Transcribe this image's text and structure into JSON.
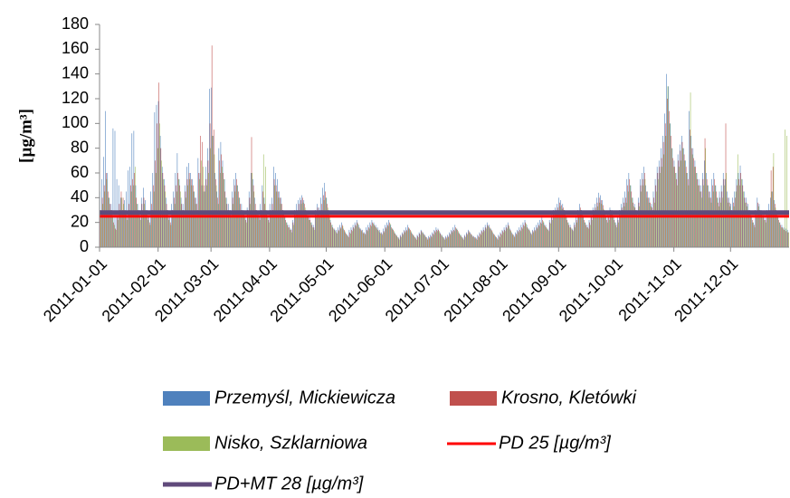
{
  "chart_data": {
    "type": "bar",
    "ylabel": "[µg/m³]",
    "ylim": [
      0,
      180
    ],
    "yticks": [
      0,
      20,
      40,
      60,
      80,
      100,
      120,
      140,
      160,
      180
    ],
    "xlim": [
      0,
      365
    ],
    "xticks": [
      {
        "value": 0,
        "label": "2011-01-01"
      },
      {
        "value": 31,
        "label": "2011-02-01"
      },
      {
        "value": 59,
        "label": "2011-03-01"
      },
      {
        "value": 90,
        "label": "2011-04-01"
      },
      {
        "value": 120,
        "label": "2011-05-01"
      },
      {
        "value": 151,
        "label": "2011-06-01"
      },
      {
        "value": 181,
        "label": "2011-07-01"
      },
      {
        "value": 212,
        "label": "2011-08-01"
      },
      {
        "value": 243,
        "label": "2011-09-01"
      },
      {
        "value": 273,
        "label": "2011-10-01"
      },
      {
        "value": 304,
        "label": "2011-11-01"
      },
      {
        "value": 334,
        "label": "2011-12-01"
      }
    ],
    "series": [
      {
        "name": "Przemyśl, Mickiewicza",
        "color": "#4f81bd",
        "values": [
          45,
          55,
          73,
          110,
          60,
          40,
          35,
          96,
          94,
          55,
          50,
          40,
          30,
          38,
          45,
          62,
          65,
          92,
          94,
          50,
          35,
          30,
          40,
          48,
          38,
          30,
          25,
          45,
          60,
          109,
          115,
          118,
          90,
          65,
          55,
          40,
          30,
          25,
          35,
          45,
          60,
          76,
          55,
          40,
          35,
          50,
          65,
          68,
          60,
          55,
          45,
          40,
          72,
          60,
          50,
          45,
          65,
          80,
          128,
          129,
          90,
          60,
          45,
          80,
          85,
          70,
          55,
          40,
          35,
          30,
          45,
          55,
          60,
          50,
          40,
          35,
          30,
          25,
          32,
          45,
          60,
          55,
          40,
          30,
          28,
          35,
          50,
          40,
          30,
          25,
          35,
          40,
          65,
          60,
          55,
          45,
          40,
          30,
          25,
          20,
          18,
          15,
          22,
          30,
          35,
          38,
          40,
          42,
          38,
          30,
          28,
          25,
          20,
          18,
          30,
          35,
          32,
          40,
          48,
          52,
          40,
          30,
          22,
          18,
          15,
          14,
          16,
          18,
          20,
          15,
          12,
          10,
          14,
          16,
          18,
          20,
          22,
          18,
          15,
          14,
          12,
          16,
          18,
          20,
          22,
          20,
          18,
          16,
          14,
          12,
          15,
          18,
          20,
          22,
          18,
          15,
          12,
          10,
          8,
          10,
          12,
          14,
          16,
          18,
          15,
          12,
          10,
          8,
          10,
          12,
          14,
          12,
          10,
          8,
          9,
          10,
          12,
          14,
          16,
          15,
          12,
          10,
          8,
          9,
          10,
          12,
          14,
          16,
          18,
          15,
          12,
          10,
          8,
          10,
          12,
          14,
          12,
          10,
          9,
          8,
          10,
          12,
          14,
          16,
          18,
          20,
          18,
          15,
          12,
          10,
          8,
          10,
          12,
          14,
          16,
          18,
          20,
          15,
          12,
          10,
          12,
          14,
          16,
          18,
          20,
          22,
          18,
          15,
          12,
          14,
          16,
          18,
          20,
          22,
          24,
          20,
          18,
          15,
          22,
          28,
          30,
          32,
          35,
          40,
          38,
          35,
          30,
          25,
          20,
          18,
          15,
          20,
          25,
          30,
          35,
          30,
          25,
          20,
          18,
          22,
          28,
          32,
          35,
          40,
          44,
          42,
          38,
          30,
          25,
          28,
          32,
          30,
          25,
          20,
          25,
          30,
          35,
          40,
          45,
          55,
          60,
          50,
          40,
          35,
          30,
          40,
          55,
          60,
          65,
          50,
          45,
          40,
          35,
          45,
          55,
          65,
          70,
          80,
          90,
          108,
          140,
          130,
          100,
          80,
          70,
          60,
          75,
          83,
          90,
          80,
          70,
          60,
          110,
          90,
          80,
          70,
          60,
          55,
          50,
          60,
          70,
          60,
          50,
          45,
          55,
          60,
          50,
          40,
          45,
          50,
          60,
          55,
          45,
          40,
          35,
          40,
          45,
          55,
          60,
          66,
          55,
          45,
          40,
          35,
          30,
          25,
          20,
          30,
          40,
          35,
          30,
          28,
          25,
          30,
          35,
          40,
          45,
          38,
          30,
          25,
          20,
          18,
          16,
          15,
          14
        ]
      },
      {
        "name": "Krosno, Kletówki",
        "color": "#c0504d",
        "values": [
          30,
          40,
          50,
          60,
          45,
          35,
          30,
          20,
          15,
          25,
          35,
          45,
          40,
          30,
          25,
          35,
          50,
          55,
          60,
          40,
          30,
          25,
          35,
          40,
          30,
          25,
          20,
          35,
          50,
          70,
          100,
          133,
          80,
          60,
          50,
          35,
          25,
          20,
          30,
          40,
          50,
          60,
          50,
          35,
          30,
          45,
          55,
          60,
          55,
          50,
          40,
          35,
          60,
          90,
          85,
          50,
          55,
          70,
          100,
          163,
          95,
          55,
          40,
          70,
          75,
          60,
          45,
          35,
          30,
          28,
          40,
          50,
          55,
          45,
          35,
          30,
          28,
          22,
          30,
          40,
          89,
          50,
          35,
          28,
          25,
          30,
          45,
          35,
          28,
          22,
          30,
          35,
          55,
          50,
          45,
          40,
          35,
          28,
          22,
          18,
          16,
          14,
          20,
          28,
          30,
          35,
          38,
          40,
          35,
          28,
          25,
          22,
          18,
          16,
          28,
          32,
          30,
          35,
          42,
          45,
          35,
          28,
          20,
          16,
          14,
          12,
          14,
          16,
          18,
          14,
          11,
          9,
          12,
          14,
          16,
          18,
          20,
          16,
          14,
          12,
          11,
          14,
          16,
          18,
          20,
          18,
          16,
          14,
          12,
          11,
          13,
          16,
          18,
          20,
          16,
          14,
          11,
          9,
          7,
          9,
          11,
          13,
          14,
          16,
          14,
          11,
          9,
          7,
          9,
          11,
          13,
          11,
          9,
          7,
          8,
          9,
          11,
          13,
          14,
          14,
          11,
          9,
          7,
          8,
          9,
          11,
          13,
          14,
          16,
          14,
          11,
          9,
          7,
          9,
          11,
          13,
          11,
          9,
          8,
          7,
          9,
          11,
          13,
          14,
          16,
          18,
          16,
          14,
          11,
          9,
          7,
          9,
          11,
          13,
          14,
          16,
          18,
          14,
          11,
          9,
          11,
          13,
          14,
          16,
          18,
          20,
          16,
          14,
          11,
          13,
          14,
          16,
          18,
          20,
          22,
          18,
          16,
          14,
          20,
          25,
          28,
          30,
          32,
          36,
          34,
          32,
          28,
          22,
          18,
          16,
          14,
          18,
          22,
          28,
          32,
          28,
          22,
          18,
          16,
          20,
          25,
          30,
          32,
          36,
          40,
          38,
          34,
          28,
          22,
          25,
          30,
          28,
          22,
          18,
          22,
          28,
          32,
          36,
          40,
          50,
          55,
          45,
          36,
          32,
          28,
          36,
          50,
          55,
          60,
          45,
          40,
          36,
          32,
          40,
          50,
          60,
          65,
          72,
          85,
          100,
          120,
          110,
          90,
          72,
          65,
          55,
          70,
          78,
          85,
          75,
          65,
          55,
          95,
          80,
          72,
          65,
          55,
          50,
          45,
          55,
          88,
          55,
          45,
          40,
          50,
          55,
          45,
          36,
          40,
          45,
          55,
          100,
          40,
          36,
          30,
          36,
          40,
          50,
          55,
          60,
          50,
          40,
          36,
          30,
          28,
          22,
          18,
          28,
          36,
          30,
          28,
          25,
          22,
          28,
          30,
          62,
          65,
          35,
          28,
          22,
          18,
          16,
          14,
          13,
          12
        ]
      },
      {
        "name": "Nisko, Szklarniowa",
        "color": "#9bbb59",
        "values": [
          25,
          35,
          45,
          55,
          40,
          30,
          25,
          18,
          14,
          22,
          30,
          40,
          35,
          28,
          22,
          30,
          45,
          50,
          65,
          35,
          28,
          22,
          30,
          35,
          28,
          22,
          18,
          30,
          45,
          60,
          80,
          100,
          70,
          55,
          45,
          30,
          22,
          18,
          28,
          35,
          45,
          55,
          45,
          30,
          28,
          40,
          50,
          55,
          50,
          45,
          35,
          30,
          55,
          70,
          65,
          45,
          50,
          60,
          80,
          90,
          75,
          50,
          35,
          60,
          65,
          55,
          40,
          30,
          28,
          25,
          35,
          45,
          50,
          40,
          30,
          28,
          25,
          20,
          28,
          35,
          60,
          45,
          30,
          25,
          22,
          28,
          75,
          65,
          25,
          20,
          28,
          30,
          50,
          45,
          40,
          35,
          30,
          25,
          20,
          16,
          14,
          12,
          18,
          25,
          28,
          30,
          35,
          36,
          32,
          25,
          22,
          20,
          16,
          14,
          25,
          28,
          26,
          30,
          38,
          40,
          32,
          25,
          18,
          15,
          13,
          11,
          13,
          15,
          17,
          13,
          10,
          8,
          11,
          13,
          15,
          17,
          19,
          15,
          13,
          11,
          10,
          13,
          15,
          17,
          19,
          17,
          15,
          13,
          11,
          10,
          12,
          15,
          17,
          19,
          15,
          13,
          10,
          8,
          6,
          8,
          10,
          12,
          13,
          15,
          13,
          10,
          8,
          6,
          8,
          10,
          12,
          10,
          8,
          6,
          7,
          8,
          10,
          12,
          13,
          13,
          10,
          8,
          6,
          7,
          8,
          10,
          12,
          13,
          15,
          13,
          10,
          8,
          6,
          8,
          10,
          12,
          10,
          8,
          7,
          6,
          8,
          10,
          12,
          13,
          15,
          17,
          15,
          13,
          10,
          8,
          6,
          8,
          10,
          12,
          13,
          15,
          17,
          13,
          10,
          8,
          10,
          12,
          13,
          15,
          17,
          19,
          15,
          13,
          10,
          12,
          13,
          15,
          17,
          19,
          21,
          17,
          15,
          13,
          19,
          22,
          25,
          27,
          30,
          33,
          31,
          30,
          25,
          20,
          16,
          15,
          13,
          16,
          20,
          25,
          30,
          25,
          20,
          16,
          15,
          18,
          22,
          27,
          30,
          33,
          36,
          35,
          31,
          25,
          20,
          22,
          27,
          25,
          20,
          16,
          20,
          25,
          30,
          33,
          36,
          45,
          50,
          40,
          33,
          30,
          25,
          33,
          45,
          50,
          55,
          40,
          36,
          33,
          30,
          36,
          45,
          55,
          60,
          65,
          75,
          90,
          130,
          100,
          80,
          65,
          60,
          50,
          65,
          70,
          80,
          70,
          60,
          50,
          125,
          75,
          65,
          60,
          50,
          45,
          40,
          50,
          80,
          50,
          40,
          36,
          45,
          50,
          40,
          33,
          36,
          40,
          50,
          60,
          36,
          33,
          28,
          33,
          45,
          75,
          50,
          55,
          45,
          36,
          33,
          28,
          25,
          20,
          16,
          25,
          33,
          28,
          25,
          22,
          20,
          25,
          28,
          45,
          76,
          32,
          25,
          20,
          16,
          15,
          95,
          90,
          12
        ]
      }
    ],
    "lines": [
      {
        "name": "PD 25 [µg/m³]",
        "color": "#ff0000",
        "value": 25
      },
      {
        "name": "PD+MT 28 [µg/m³]",
        "color": "#604a7b",
        "value": 28
      }
    ]
  }
}
